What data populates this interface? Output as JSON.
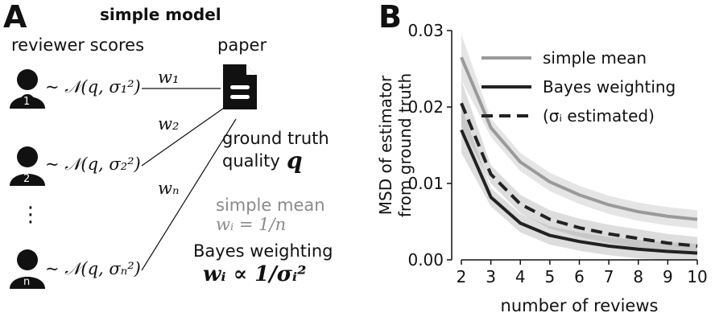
{
  "panel_a": {
    "letter": "A",
    "title": "simple model",
    "reviewer_scores_label": "reviewer scores",
    "paper_label": "paper",
    "reviewers": [
      {
        "number": "1",
        "distribution": "~ 𝒩(q, σ₁²)",
        "weight": "w₁"
      },
      {
        "number": "2",
        "distribution": "~ 𝒩(q, σ₂²)",
        "weight": "w₂"
      },
      {
        "number": "n",
        "distribution": "~ 𝒩(q, σₙ²)",
        "weight": "wₙ"
      }
    ],
    "ellipsis": "⋮",
    "ground_truth_line1": "ground truth",
    "ground_truth_line2": "quality",
    "quality_symbol": "q",
    "simple_mean_label": "simple mean",
    "simple_mean_formula": "wᵢ = 1/n",
    "bayes_label": "Bayes weighting",
    "bayes_formula": "wᵢ ∝ 1/σᵢ²",
    "person_icon": "person-icon",
    "document_icon": "document-icon"
  },
  "panel_b": {
    "letter": "B"
  },
  "chart_data": {
    "type": "line",
    "x": [
      2,
      3,
      4,
      5,
      6,
      7,
      8,
      9,
      10
    ],
    "xlabel": "number of reviews",
    "ylabel_line1": "MSD of estimator",
    "ylabel_line2": "from ground truth",
    "xlim": [
      2,
      10
    ],
    "ylim": [
      0,
      0.03
    ],
    "xticks": [
      "2",
      "3",
      "4",
      "5",
      "6",
      "7",
      "8",
      "9",
      "10"
    ],
    "yticks": [
      {
        "value": 0.0,
        "label": "0.00"
      },
      {
        "value": 0.01,
        "label": "0.01"
      },
      {
        "value": 0.02,
        "label": "0.02"
      },
      {
        "value": 0.03,
        "label": "0.03"
      }
    ],
    "grid": false,
    "legend_position": "top-right",
    "series": [
      {
        "name": "simple mean",
        "color": "#9a9a9a",
        "dash": "solid",
        "values": [
          0.0265,
          0.0173,
          0.0128,
          0.0102,
          0.0085,
          0.0072,
          0.0063,
          0.0057,
          0.0053
        ],
        "band": 0.0012
      },
      {
        "name": "Bayes weighting",
        "color": "#222222",
        "dash": "solid",
        "values": [
          0.017,
          0.0082,
          0.0048,
          0.0032,
          0.0024,
          0.0018,
          0.0014,
          0.0011,
          0.0009
        ],
        "band": 0.0012
      },
      {
        "name": "(σᵢ estimated)",
        "color": "#222222",
        "dash": "dashed",
        "values": [
          0.0205,
          0.0112,
          0.0073,
          0.0053,
          0.0042,
          0.0034,
          0.0028,
          0.0022,
          0.0018
        ],
        "band": 0.0012
      }
    ]
  }
}
